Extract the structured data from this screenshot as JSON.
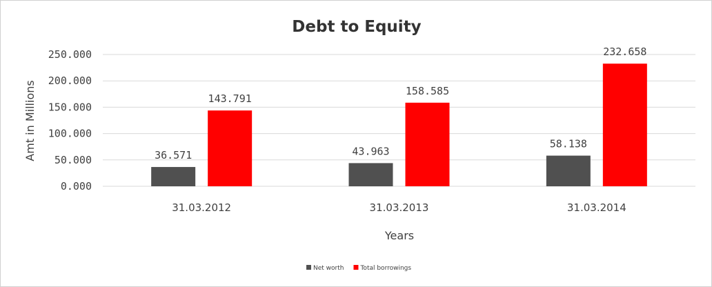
{
  "chart_data": {
    "type": "bar",
    "title": "Debt to Equity",
    "xlabel": "Years",
    "ylabel": "Amt in Millions",
    "categories": [
      "31.03.2012",
      "31.03.2013",
      "31.03.2014"
    ],
    "series": [
      {
        "name": "Net worth",
        "values": [
          36.571,
          43.963,
          58.138
        ],
        "value_labels": [
          "36.571",
          "43.963",
          "58.138"
        ],
        "color": "#505050"
      },
      {
        "name": "Total borrowings",
        "values": [
          143.791,
          158.585,
          232.658
        ],
        "value_labels": [
          "143.791",
          "158.585",
          "232.658"
        ],
        "color": "#ff0000"
      }
    ],
    "ylim": [
      0,
      250
    ],
    "yticks": [
      0,
      50,
      100,
      150,
      200,
      250
    ],
    "ytick_labels": [
      "0.000",
      "50.000",
      "100.000",
      "150.000",
      "200.000",
      "250.000"
    ],
    "grid": true,
    "gridline_color": "#d9d9d9",
    "legend_position": "bottom"
  }
}
